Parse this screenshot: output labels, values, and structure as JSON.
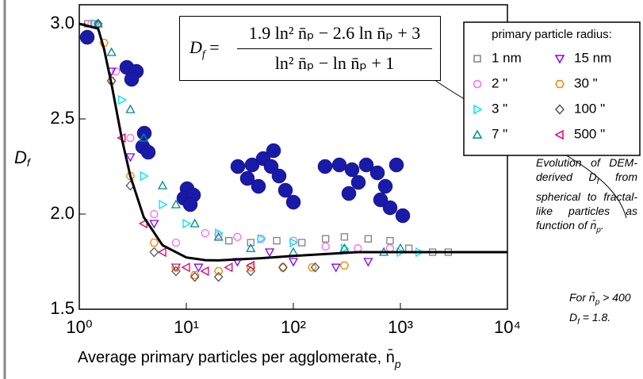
{
  "chart_data": {
    "type": "scatter",
    "xlabel": [
      "Average primary particles per agglomerate, n̄",
      "p"
    ],
    "ylabel": [
      "D",
      "f"
    ],
    "log_x": true,
    "xlim": [
      1,
      10000
    ],
    "ylim": [
      1.5,
      3.1
    ],
    "xticks": [
      {
        "value": 1,
        "label": "10⁰"
      },
      {
        "value": 10,
        "label": "10¹"
      },
      {
        "value": 100,
        "label": "10²"
      },
      {
        "value": 1000,
        "label": "10³"
      },
      {
        "value": 10000,
        "label": "10⁴"
      }
    ],
    "yticks": [
      1.5,
      {
        "value": 2.0,
        "label": "2.0"
      },
      2.5,
      {
        "value": 3.0,
        "label": "3.0"
      }
    ],
    "legend_title": "primary particle radius:",
    "legend_position": "upper right",
    "series": [
      {
        "name": "1 nm",
        "color": "#808080",
        "marker": "square",
        "x": [
          1.2,
          1.4,
          25,
          40,
          70,
          120,
          200,
          300,
          500,
          800,
          1200,
          2000,
          2800
        ],
        "values": [
          3.0,
          3.0,
          1.86,
          1.85,
          1.86,
          1.85,
          1.87,
          1.88,
          1.87,
          1.86,
          1.82,
          1.8,
          1.8
        ]
      },
      {
        "name": "2  \"",
        "color": "#ff66ff",
        "marker": "circle",
        "x": [
          1.3,
          2.2,
          3,
          5,
          8,
          15,
          20,
          30,
          50,
          100,
          200,
          400,
          800
        ],
        "values": [
          3.0,
          2.75,
          2.4,
          2.0,
          1.85,
          1.9,
          1.89,
          1.88,
          1.87,
          1.86,
          1.83,
          1.82,
          1.82
        ]
      },
      {
        "name": "3  \"",
        "color": "#00e5ff",
        "marker": "right",
        "x": [
          1.4,
          2.5,
          4,
          6,
          10,
          20,
          50,
          100,
          300,
          1000,
          1500
        ],
        "values": [
          3.0,
          2.6,
          2.2,
          2.05,
          1.95,
          1.9,
          1.87,
          1.85,
          1.82,
          1.8,
          1.8
        ]
      },
      {
        "name": "7  \"",
        "color": "#008b8b",
        "marker": "up",
        "x": [
          1.5,
          2,
          3,
          4,
          6,
          8,
          12,
          20,
          40,
          100,
          300,
          700,
          1000
        ],
        "values": [
          3.0,
          2.85,
          2.55,
          2.4,
          2.15,
          2.05,
          1.95,
          1.88,
          1.82,
          1.8,
          1.82,
          1.8,
          1.82
        ]
      },
      {
        "name": "15 nm",
        "color": "#8000ff",
        "marker": "down",
        "x": [
          2,
          3,
          5,
          8,
          13,
          30,
          60,
          100,
          250,
          500
        ],
        "values": [
          2.75,
          2.3,
          1.95,
          1.72,
          1.72,
          1.75,
          1.8,
          1.75,
          1.72,
          1.75
        ]
      },
      {
        "name": "30  \"",
        "color": "#ff8000",
        "marker": "hexagon",
        "x": [
          1.7,
          2,
          3,
          5,
          8,
          12,
          20,
          40,
          80,
          150,
          300
        ],
        "values": [
          2.9,
          2.7,
          2.2,
          1.85,
          1.72,
          1.68,
          1.7,
          1.72,
          1.72,
          1.72,
          1.73
        ]
      },
      {
        "name": "100  \"",
        "color": "#555555",
        "marker": "diamond",
        "x": [
          1.5,
          2,
          3,
          5,
          8,
          12,
          20,
          40,
          80,
          160
        ],
        "values": [
          3.0,
          2.7,
          2.15,
          1.8,
          1.7,
          1.67,
          1.67,
          1.7,
          1.72,
          1.72
        ]
      },
      {
        "name": "500  \"",
        "color": "#e0006a",
        "marker": "left",
        "x": [
          2.5,
          4,
          6,
          10,
          15,
          25,
          40
        ],
        "values": [
          2.4,
          1.95,
          1.8,
          1.72,
          1.7,
          1.72,
          1.73
        ]
      }
    ],
    "fit": {
      "color": "#000000",
      "x": [
        1,
        1.5,
        1.7,
        2,
        2.5,
        3,
        4,
        6,
        10,
        15,
        20,
        50,
        100,
        400,
        10000
      ],
      "values": [
        3.0,
        2.975,
        2.87,
        2.683,
        2.395,
        2.199,
        1.984,
        1.836,
        1.772,
        1.758,
        1.757,
        1.768,
        1.78,
        1.8,
        1.8
      ]
    },
    "formula": {
      "lhs": [
        "D",
        "f"
      ],
      "equals": "=",
      "numerator": "1.9 ln² n̄ₚ − 2.6 ln n̄ₚ + 3",
      "denominator": "ln² n̄ₚ − ln n̄ₚ + 1"
    },
    "note1": [
      "Evolution of DEM-derived D",
      "f",
      " from spherical to fractal-like particles as function of n̄",
      "p",
      "."
    ],
    "note2": [
      [
        "For n̄",
        "p",
        " > 400"
      ],
      [
        "D",
        "f",
        " = 1.8."
      ]
    ]
  }
}
